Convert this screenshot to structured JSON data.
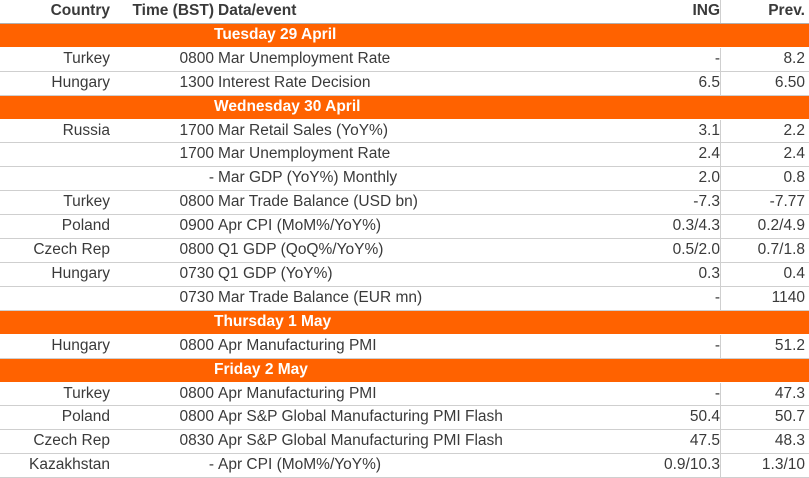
{
  "headers": {
    "country": "Country",
    "time": "Time (BST)",
    "event": "Data/event",
    "ing": "ING",
    "prev": "Prev."
  },
  "accent_color": "#ff6200",
  "sections": [
    {
      "title": "Tuesday 29 April",
      "rows": [
        {
          "country": "Turkey",
          "time": "0800",
          "event": "Mar Unemployment Rate",
          "ing": "-",
          "prev": "8.2"
        },
        {
          "country": "Hungary",
          "time": "1300",
          "event": "Interest Rate Decision",
          "ing": "6.5",
          "prev": "6.50"
        }
      ]
    },
    {
      "title": "Wednesday 30 April",
      "rows": [
        {
          "country": "Russia",
          "time": "1700",
          "event": "Mar Retail Sales (YoY%)",
          "ing": "3.1",
          "prev": "2.2"
        },
        {
          "country": "",
          "time": "1700",
          "event": "Mar Unemployment Rate",
          "ing": "2.4",
          "prev": "2.4"
        },
        {
          "country": "",
          "time": "-",
          "event": "Mar GDP (YoY%) Monthly",
          "ing": "2.0",
          "prev": "0.8"
        },
        {
          "country": "Turkey",
          "time": "0800",
          "event": "Mar Trade Balance (USD bn)",
          "ing": "-7.3",
          "prev": "-7.77"
        },
        {
          "country": "Poland",
          "time": "0900",
          "event": "Apr CPI (MoM%/YoY%)",
          "ing": "0.3/4.3",
          "prev": "0.2/4.9"
        },
        {
          "country": "Czech Rep",
          "time": "0800",
          "event": "Q1 GDP (QoQ%/YoY%)",
          "ing": "0.5/2.0",
          "prev": "0.7/1.8"
        },
        {
          "country": "Hungary",
          "time": "0730",
          "event": "Q1 GDP (YoY%)",
          "ing": "0.3",
          "prev": "0.4"
        },
        {
          "country": "",
          "time": "0730",
          "event": "Mar Trade Balance (EUR mn)",
          "ing": "-",
          "prev": "1140"
        }
      ]
    },
    {
      "title": "Thursday 1 May",
      "rows": [
        {
          "country": "Hungary",
          "time": "0800",
          "event": "Apr Manufacturing PMI",
          "ing": "-",
          "prev": "51.2"
        }
      ]
    },
    {
      "title": "Friday 2 May",
      "rows": [
        {
          "country": "Turkey",
          "time": "0800",
          "event": "Apr Manufacturing PMI",
          "ing": "-",
          "prev": "47.3"
        },
        {
          "country": "Poland",
          "time": "0800",
          "event": "Apr S&P Global Manufacturing PMI Flash",
          "ing": "50.4",
          "prev": "50.7"
        },
        {
          "country": "Czech Rep",
          "time": "0830",
          "event": "Apr S&P Global Manufacturing PMI Flash",
          "ing": "47.5",
          "prev": "48.3"
        },
        {
          "country": "Kazakhstan",
          "time": "-",
          "event": "Apr CPI (MoM%/YoY%)",
          "ing": "0.9/10.3",
          "prev": "1.3/10"
        }
      ]
    }
  ]
}
